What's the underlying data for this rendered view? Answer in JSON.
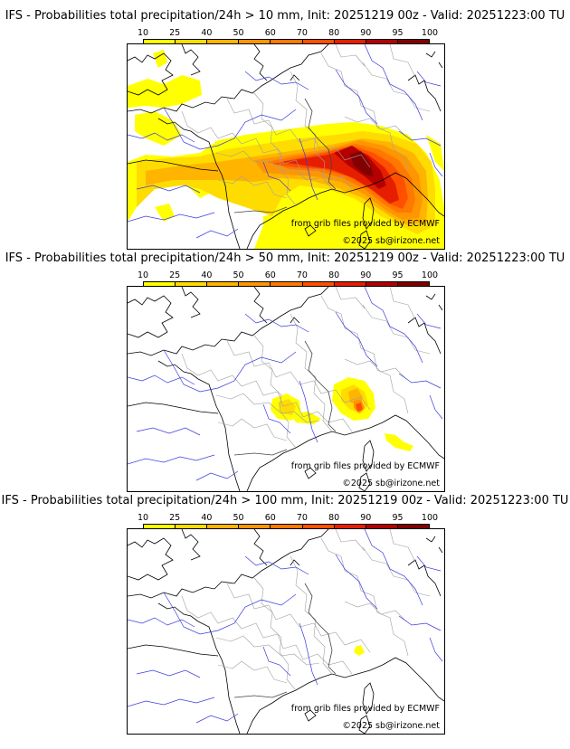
{
  "legend": {
    "labels": [
      "10",
      "25",
      "40",
      "50",
      "60",
      "70",
      "80",
      "90",
      "95",
      "100"
    ],
    "colors": [
      "#ffff00",
      "#ffdc00",
      "#ffb400",
      "#ff9600",
      "#ff7800",
      "#ff5000",
      "#e61e00",
      "#b40000",
      "#820000",
      "#500000"
    ]
  },
  "panels": [
    {
      "title": "IFS - Probabilities total precipitation/24h > 10 mm, Init: 20251219 00z - Valid: 20251223:00 TU",
      "source_note": "from grib files provided by ECMWF",
      "copyright": "©2025 sb@irizone.net"
    },
    {
      "title": "IFS - Probabilities total precipitation/24h > 50 mm, Init: 20251219 00z - Valid: 20251223:00 TU",
      "source_note": "from grib files provided by ECMWF",
      "copyright": "©2025 sb@irizone.net"
    },
    {
      "title": "IFS - Probabilities total precipitation/24h > 100 mm, Init: 20251219 00z - Valid: 20251223:00 TU",
      "source_note": "from grib files provided by ECMWF",
      "copyright": "©2025 sb@irizone.net"
    }
  ]
}
